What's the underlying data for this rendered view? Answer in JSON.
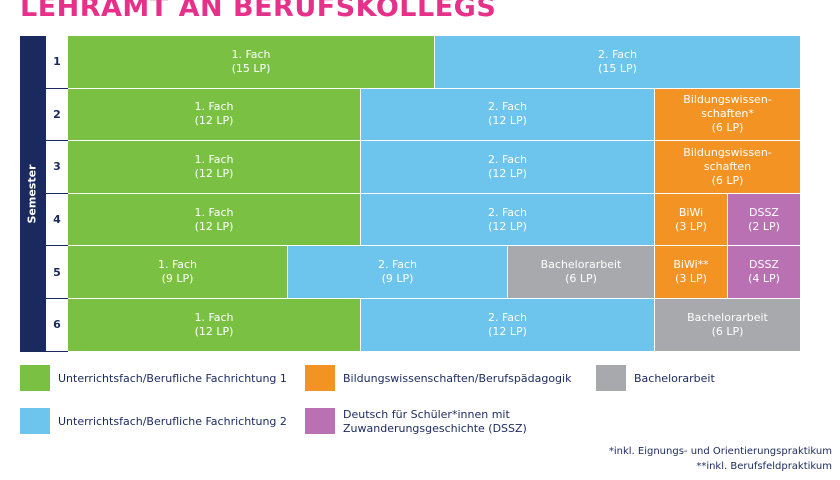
{
  "title": "LEHRAMT AN BERUFSKOLLEGS",
  "semester_label": "Semester",
  "semesters": [
    "1",
    "2",
    "3",
    "4",
    "5",
    "6"
  ],
  "colors": {
    "subject1": "#7ac143",
    "subject2": "#6dc5ee",
    "education": "#f39324",
    "dssz": "#b971b3",
    "thesis": "#a7a9ac",
    "bar": "#1b2a5e",
    "title": "#e6308a"
  },
  "rows": [
    [
      {
        "label": "1. Fach\n(15 LP)",
        "kind": "subject1"
      },
      {
        "label": "2. Fach\n(15 LP)",
        "kind": "subject2"
      }
    ],
    [
      {
        "label": "1. Fach\n(12 LP)",
        "kind": "subject1"
      },
      {
        "label": "2. Fach\n(12 LP)",
        "kind": "subject2"
      },
      {
        "label": "Bildungswissen-\nschaften*\n(6 LP)",
        "kind": "education"
      }
    ],
    [
      {
        "label": "1. Fach\n(12 LP)",
        "kind": "subject1"
      },
      {
        "label": "2. Fach\n(12 LP)",
        "kind": "subject2"
      },
      {
        "label": "Bildungswissen-\nschaften\n(6 LP)",
        "kind": "education"
      }
    ],
    [
      {
        "label": "1. Fach\n(12 LP)",
        "kind": "subject1"
      },
      {
        "label": "2. Fach\n(12 LP)",
        "kind": "subject2"
      },
      {
        "label": "BiWi\n(3 LP)",
        "kind": "education"
      },
      {
        "label": "DSSZ\n(2 LP)",
        "kind": "dssz"
      }
    ],
    [
      {
        "label": "1. Fach\n(9 LP)",
        "kind": "subject1"
      },
      {
        "label": "2. Fach\n(9 LP)",
        "kind": "subject2"
      },
      {
        "label": "Bachelorarbeit\n(6 LP)",
        "kind": "thesis"
      },
      {
        "label": "BiWi**\n(3 LP)",
        "kind": "education"
      },
      {
        "label": "DSSZ\n(4 LP)",
        "kind": "dssz"
      }
    ],
    [
      {
        "label": "1. Fach\n(12 LP)",
        "kind": "subject1"
      },
      {
        "label": "2. Fach\n(12 LP)",
        "kind": "subject2"
      },
      {
        "label": "Bachelorarbeit\n(6 LP)",
        "kind": "thesis"
      }
    ]
  ],
  "legend": {
    "subject1": "Unterrichtsfach/Berufliche Fachrichtung 1",
    "subject2": "Unterrichtsfach/Berufliche Fachrichtung 2",
    "education": "Bildungswissenschaften/Berufspädagogik",
    "dssz": "Deutsch für Schüler*innen mit\nZuwanderungsgeschichte (DSSZ)",
    "thesis": "Bachelorarbeit"
  },
  "footnotes": [
    "*inkl. Eignungs- und Orientierungspraktikum",
    "**inkl. Berufsfeldpraktikum"
  ]
}
